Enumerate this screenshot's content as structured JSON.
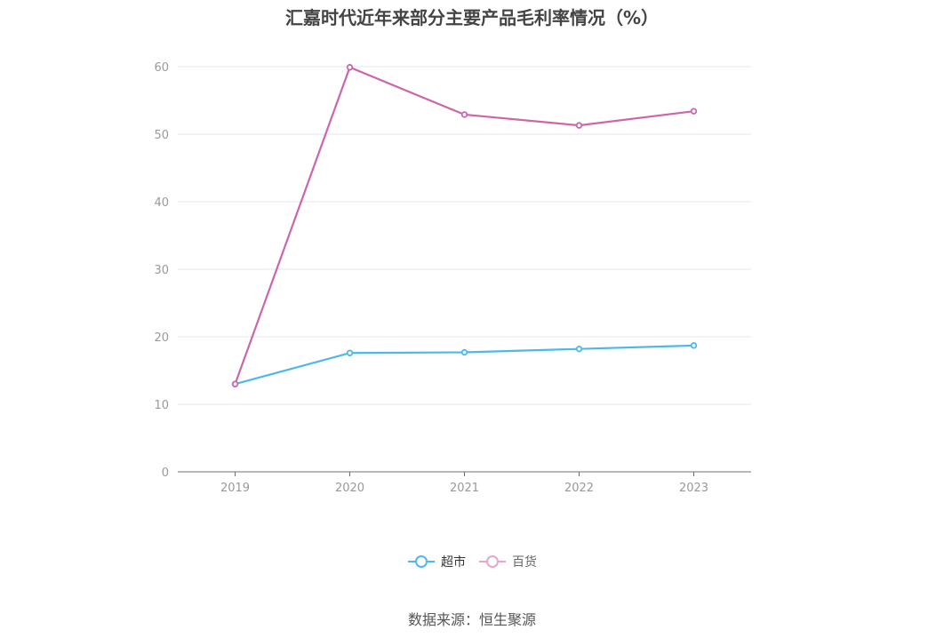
{
  "chart_data": {
    "type": "line",
    "title": "汇嘉时代近年来部分主要产品毛利率情况（%）",
    "categories": [
      "2019",
      "2020",
      "2021",
      "2022",
      "2023"
    ],
    "series": [
      {
        "name": "超市",
        "color": "#4db8ea",
        "values": [
          13.0,
          17.6,
          17.7,
          18.2,
          18.7
        ]
      },
      {
        "name": "百货",
        "color": "#cc66aa",
        "values": [
          13.0,
          59.9,
          52.9,
          51.3,
          53.4
        ]
      }
    ],
    "ylim": [
      0,
      60
    ],
    "yticks": [
      0,
      10,
      20,
      30,
      40,
      50,
      60
    ],
    "grid": true,
    "legend_position": "bottom-center"
  },
  "source_text": "数据来源：恒生聚源"
}
